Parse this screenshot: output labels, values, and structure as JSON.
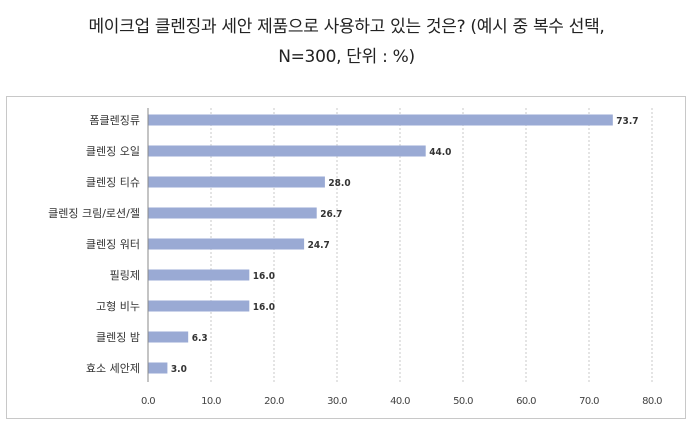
{
  "title_line1": "메이크업 클렌징과 세안 제품으로 사용하고 있는 것은? (예시 중 복수 선택,",
  "title_line2": "N=300, 단위 : %)",
  "chart_data": {
    "type": "bar",
    "orientation": "horizontal",
    "categories": [
      "폼클렌징류",
      "클렌징 오일",
      "클렌징 티슈",
      "클렌징 크림/로션/젤",
      "클렌징 워터",
      "필링제",
      "고형 비누",
      "클렌징 밤",
      "효소 세안제"
    ],
    "values": [
      73.7,
      44.0,
      28.0,
      26.7,
      24.7,
      16.0,
      16.0,
      6.3,
      3.0
    ],
    "value_labels": [
      "73.7",
      "44.0",
      "28.0",
      "26.7",
      "24.7",
      "16.0",
      "16.0",
      "6.3",
      "3.0"
    ],
    "xlim": [
      0,
      80
    ],
    "ticks": [
      0,
      10,
      20,
      30,
      40,
      50,
      60,
      70,
      80
    ],
    "tick_labels": [
      "0.0",
      "10.0",
      "20.0",
      "30.0",
      "40.0",
      "50.0",
      "60.0",
      "70.0",
      "80.0"
    ],
    "bar_color": "#9aaad4",
    "grid": "vertical dashed",
    "legend": "none"
  }
}
